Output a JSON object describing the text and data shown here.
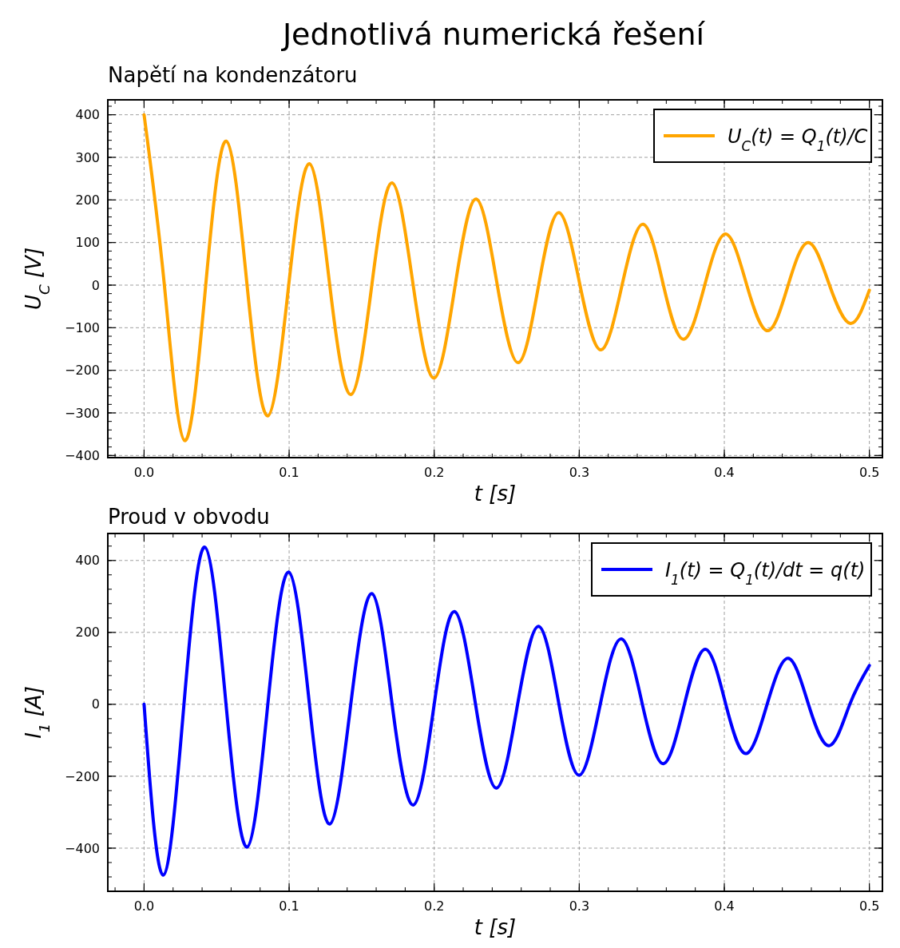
{
  "chart_data": [
    {
      "type": "line",
      "title": "Jednotlivá numerická řešení",
      "subtitle": "Napětí na kondenzátoru",
      "xlabel": "t [s]",
      "ylabel": "U$_{C}$ [V]",
      "xlim": [
        -0.025,
        0.509
      ],
      "ylim": [
        -405,
        435
      ],
      "xticks": [
        {
          "value": 0,
          "label": "0.0"
        },
        0.1,
        0.2,
        0.3,
        0.4,
        0.5
      ],
      "yticks": [
        -400,
        -300,
        -200,
        -100,
        0,
        100,
        200,
        300,
        400
      ],
      "grid": true,
      "legend": "top right",
      "line_style": "solid",
      "series": [
        {
          "name": "U$_{C}$(t) = Q$_{1}$(t)/C",
          "color": "#ffa500",
          "x": [
            0,
            0.014,
            0.028,
            0.0425,
            0.0567,
            0.071,
            0.0853,
            0.0997,
            0.114,
            0.128,
            0.1426,
            0.157,
            0.171,
            0.1855,
            0.2,
            0.2145,
            0.229,
            0.2435,
            0.258,
            0.272,
            0.286,
            0.3005,
            0.315,
            0.3295,
            0.344,
            0.358,
            0.372,
            0.3865,
            0.401,
            0.4155,
            0.43,
            0.444,
            0.458,
            0.4725,
            0.487,
            0.5
          ],
          "values": [
            400,
            0,
            -365,
            0,
            338,
            0,
            -307,
            0,
            285,
            0,
            -257,
            0,
            240,
            0,
            -218,
            0,
            202,
            0,
            -182,
            0,
            170,
            0,
            -152,
            0,
            143,
            0,
            -127,
            0,
            120,
            0,
            -107,
            0,
            100,
            0,
            -90,
            -12
          ]
        }
      ]
    },
    {
      "type": "line",
      "title": "Proud v obvodu",
      "xlabel": "t [s]",
      "ylabel": "I$_{1}$ [A]",
      "xlim": [
        -0.025,
        0.509
      ],
      "ylim": [
        -520,
        475
      ],
      "xticks": [
        {
          "value": 0,
          "label": "0.0"
        },
        0.1,
        0.2,
        0.3,
        0.4,
        0.5
      ],
      "yticks": [
        -400,
        -200,
        0,
        200,
        400
      ],
      "grid": true,
      "legend": "top right",
      "line_style": "solid",
      "series": [
        {
          "name": "I$_{1}$(t) = Q$_{1}$(t)/dt = q(t)",
          "color": "#0000ff",
          "x": [
            0,
            0.0132,
            0.0275,
            0.0419,
            0.0565,
            0.071,
            0.0853,
            0.0997,
            0.114,
            0.128,
            0.1425,
            0.157,
            0.171,
            0.1856,
            0.2,
            0.214,
            0.2285,
            0.243,
            0.2575,
            0.272,
            0.286,
            0.3,
            0.3145,
            0.329,
            0.3435,
            0.358,
            0.3725,
            0.387,
            0.401,
            0.415,
            0.4295,
            0.444,
            0.458,
            0.4725,
            0.4865,
            0.5
          ],
          "values": [
            0,
            -475,
            0,
            437,
            0,
            -397,
            0,
            368,
            0,
            -333,
            0,
            308,
            0,
            -280,
            0,
            258,
            0,
            -233,
            0,
            217,
            0,
            -197,
            0,
            182,
            0,
            -165,
            0,
            153,
            0,
            -137,
            0,
            128,
            0,
            -115,
            0,
            108
          ]
        }
      ]
    }
  ]
}
